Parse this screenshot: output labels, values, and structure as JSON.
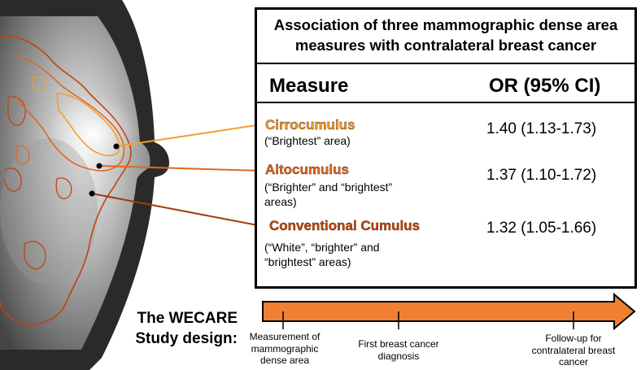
{
  "panel": {
    "title_line1": "Association of three mammographic dense area",
    "title_line2": "measures with contralateral breast cancer",
    "col_measure": "Measure",
    "col_or": "OR (95% CI)"
  },
  "measures": [
    {
      "name": "Cirrocumulus",
      "desc1": "(“Brightest” area)",
      "desc2": "",
      "desc3": "",
      "or": "1.40 (1.13-1.73)",
      "color": "#f0a030"
    },
    {
      "name": "Altocumulus",
      "desc1": "(“Brighter” and “brightest”",
      "desc2": "areas)",
      "desc3": "",
      "or": "1.37 (1.10-1.72)",
      "color": "#e06820"
    },
    {
      "name": "Conventional Cumulus",
      "desc1": "(“White”, “brighter” and",
      "desc2": "“brightest” areas)",
      "desc3": "",
      "or": "1.32 (1.05-1.66)",
      "color": "#c04410"
    }
  ],
  "study": {
    "line1": "The WECARE",
    "line2": "Study design:"
  },
  "timeline": [
    {
      "line1": "Measurement of",
      "line2": "mammographic",
      "line3": "dense area"
    },
    {
      "line1": "First breast cancer",
      "line2": "diagnosis",
      "line3": ""
    },
    {
      "line1": "Follow-up for",
      "line2": "contralateral breast",
      "line3": "cancer"
    }
  ],
  "colors": {
    "arrow_fill": "#f07f33",
    "arrow_stroke": "#000000"
  }
}
